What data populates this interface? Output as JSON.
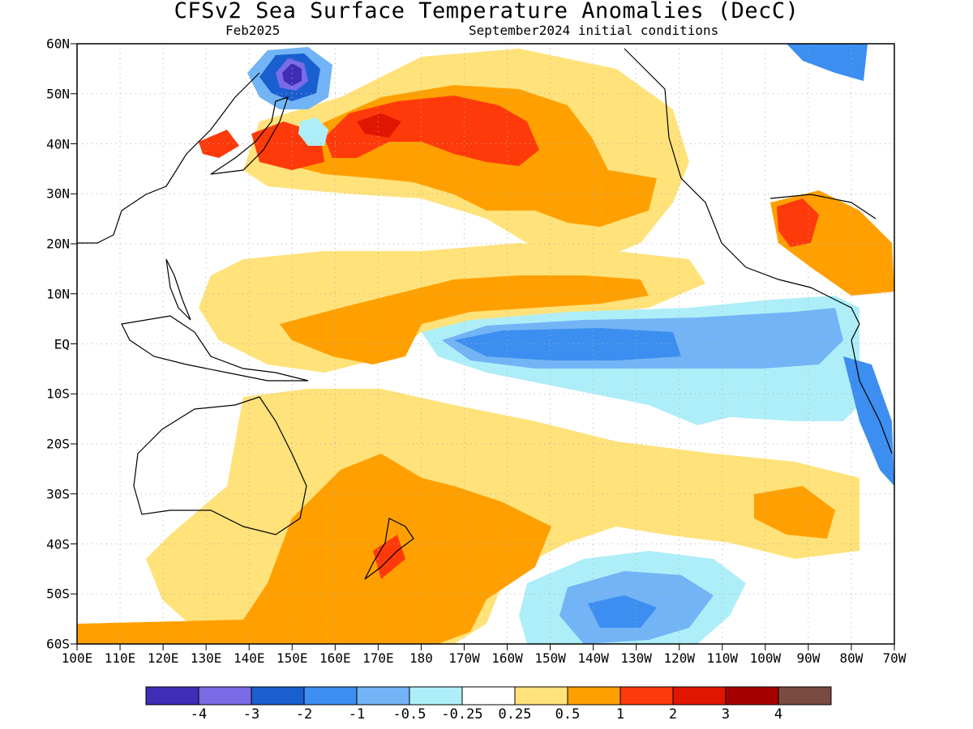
{
  "title": "CFSv2 Sea Surface Temperature Anomalies (DecC)",
  "subtitle_left": "Feb2025",
  "subtitle_right": "September2024 initial conditions",
  "lat_labels": [
    "60N",
    "50N",
    "40N",
    "30N",
    "20N",
    "10N",
    "EQ",
    "10S",
    "20S",
    "30S",
    "40S",
    "50S",
    "60S"
  ],
  "lon_labels": [
    "100E",
    "110E",
    "120E",
    "130E",
    "140E",
    "150E",
    "160E",
    "170E",
    "180",
    "170W",
    "160W",
    "150W",
    "140W",
    "130W",
    "120W",
    "110W",
    "100W",
    "90W",
    "80W",
    "70W"
  ],
  "colorbar": {
    "colors": [
      "#3f2db5",
      "#7b6be6",
      "#1a5fcf",
      "#3c8ef0",
      "#72b4f5",
      "#aeeef8",
      "#ffffff",
      "#ffe27a",
      "#ffa000",
      "#ff3a0a",
      "#e01600",
      "#a60000",
      "#7a4a40"
    ],
    "ticks": [
      "-4",
      "-3",
      "-2",
      "-1",
      "-0.5",
      "-0.25",
      "0.25",
      "0.5",
      "1",
      "2",
      "3",
      "4"
    ]
  },
  "map_extent": {
    "lon_min": 100,
    "lon_max": 290,
    "lat_min": -60,
    "lat_max": 60
  },
  "colors": {
    "frame": "#000000",
    "grid": "#b0b0b0",
    "land_outline": "#000000"
  }
}
